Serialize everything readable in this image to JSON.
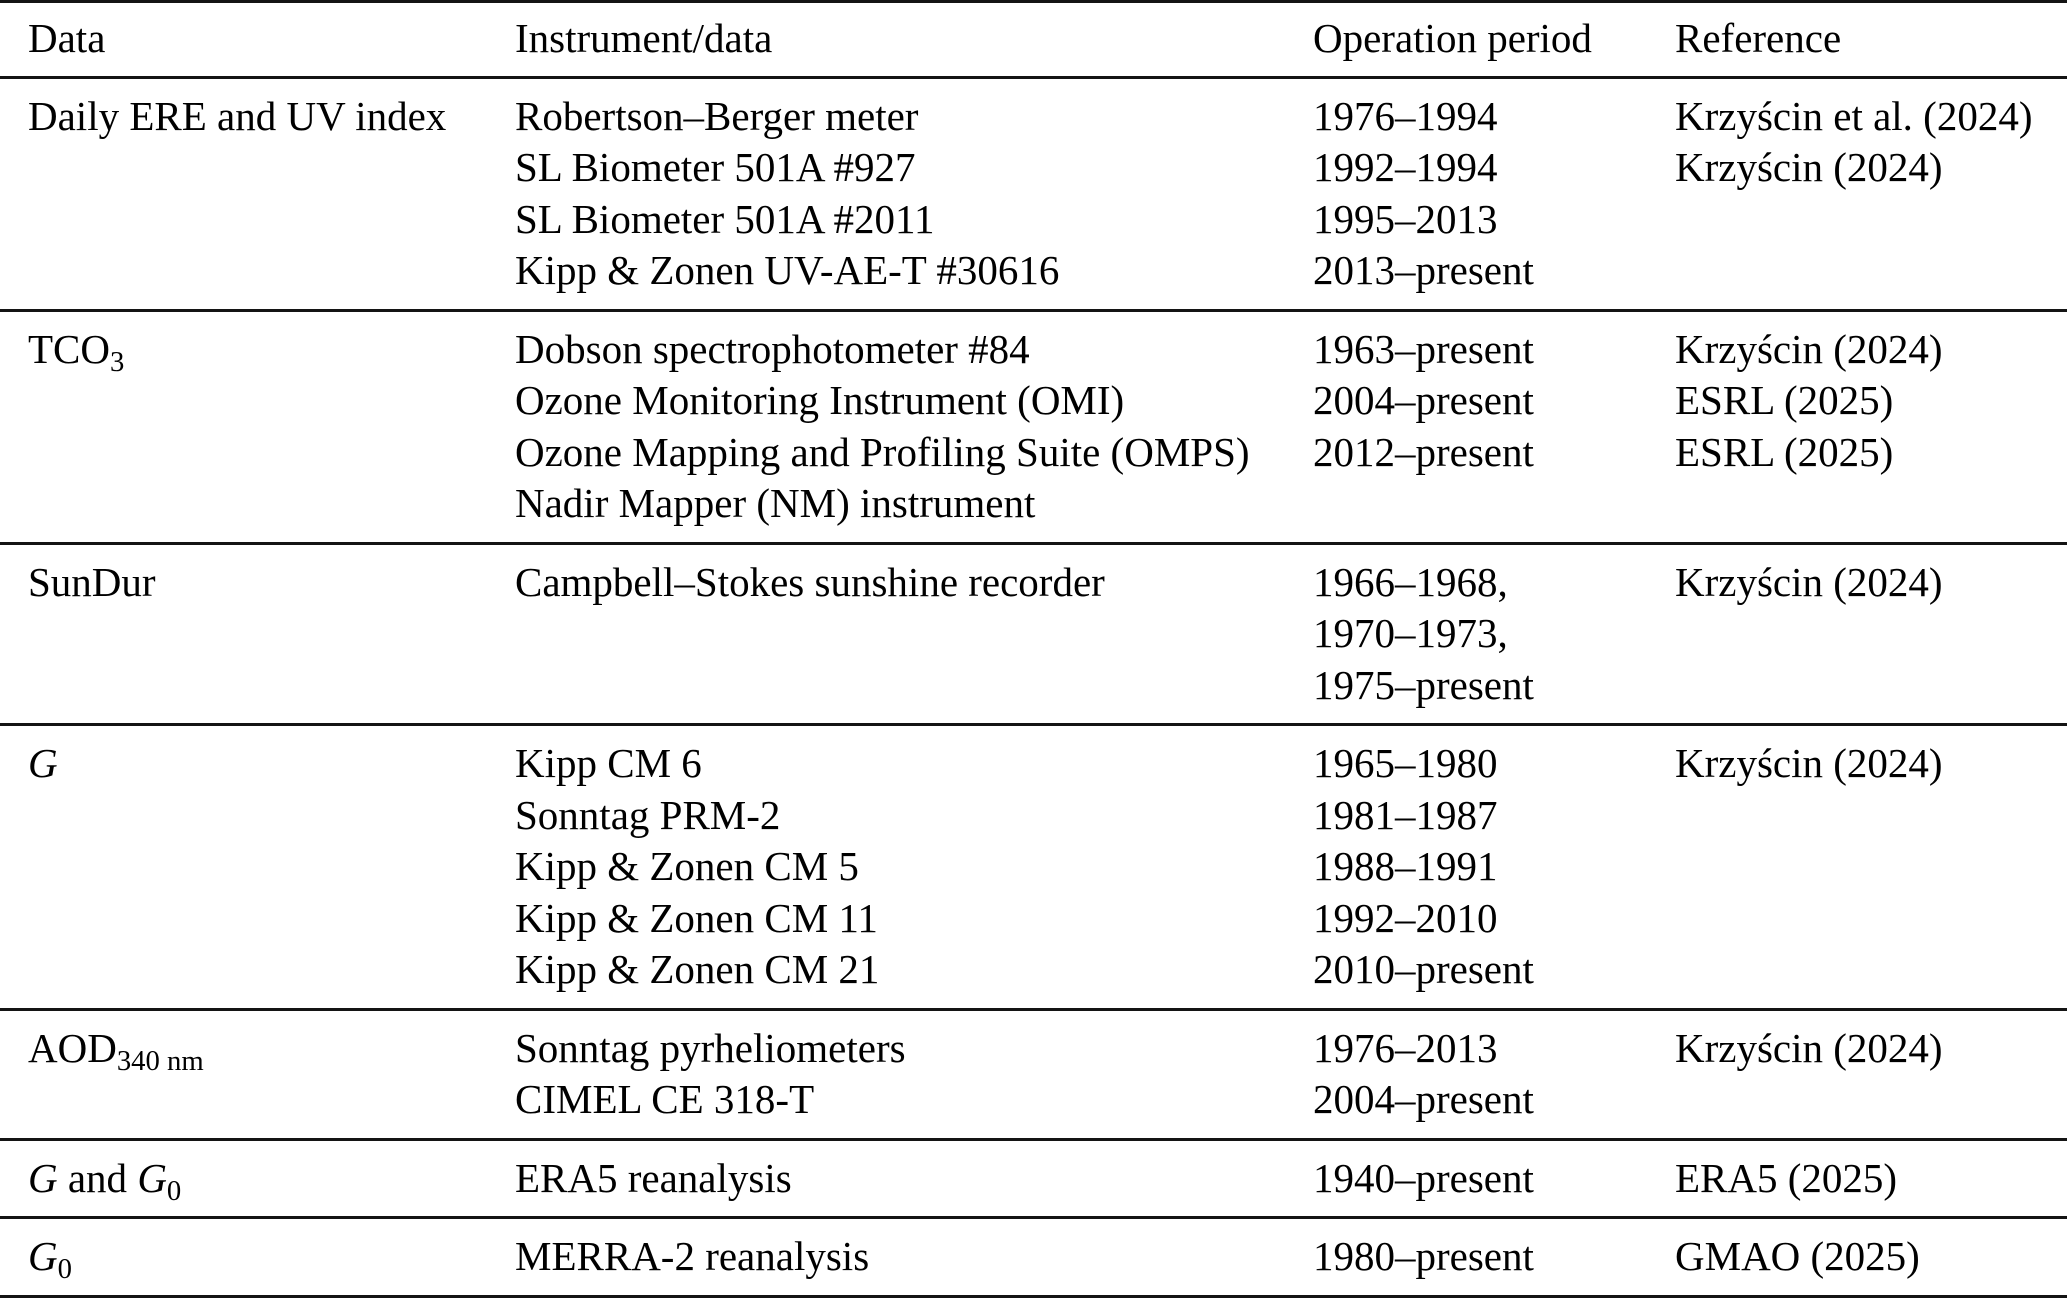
{
  "colors": {
    "text": "#000000",
    "background": "#ffffff",
    "rule": "#141414"
  },
  "table": {
    "columns": [
      "Data",
      "Instrument/data",
      "Operation period",
      "Reference"
    ],
    "rows": [
      {
        "label": [
          {
            "text": "Daily ERE and UV index"
          }
        ],
        "instruments": [
          "Robertson–Berger meter",
          "SL Biometer 501A #927",
          "SL Biometer 501A #2011",
          "Kipp & Zonen UV-AE-T #30616"
        ],
        "periods": [
          "1976–1994",
          "1992–1994",
          "1995–2013",
          "2013–present"
        ],
        "references": [
          "Krzyścin et al. (2024)",
          "Krzyścin (2024)"
        ]
      },
      {
        "label": [
          {
            "text": "TCO"
          },
          {
            "text": "3",
            "sub": true
          }
        ],
        "instruments": [
          "Dobson spectrophotometer #84",
          "Ozone Monitoring Instrument (OMI)",
          "Ozone Mapping and Profiling Suite (OMPS)",
          "Nadir Mapper (NM) instrument"
        ],
        "periods": [
          "1963–present",
          "2004–present",
          "2012–present"
        ],
        "references": [
          "Krzyścin (2024)",
          "ESRL (2025)",
          "ESRL (2025)"
        ]
      },
      {
        "label": [
          {
            "text": "SunDur"
          }
        ],
        "instruments": [
          "Campbell–Stokes sunshine recorder"
        ],
        "periods": [
          "1966–1968,",
          "1970–1973,",
          "1975–present"
        ],
        "references": [
          "Krzyścin (2024)"
        ]
      },
      {
        "label": [
          {
            "text": "G",
            "italic": true
          }
        ],
        "instruments": [
          "Kipp CM 6",
          "Sonntag PRM-2",
          "Kipp & Zonen CM 5",
          "Kipp & Zonen CM 11",
          "Kipp & Zonen CM 21"
        ],
        "periods": [
          "1965–1980",
          "1981–1987",
          "1988–1991",
          "1992–2010",
          "2010–present"
        ],
        "references": [
          "Krzyścin (2024)"
        ]
      },
      {
        "label": [
          {
            "text": "AOD"
          },
          {
            "text": "340 nm",
            "sub": true
          }
        ],
        "instruments": [
          "Sonntag pyrheliometers",
          "CIMEL CE 318-T"
        ],
        "periods": [
          "1976–2013",
          "2004–present"
        ],
        "references": [
          "Krzyścin (2024)"
        ]
      },
      {
        "label": [
          {
            "text": "G",
            "italic": true
          },
          {
            "text": " and "
          },
          {
            "text": "G",
            "italic": true
          },
          {
            "text": "0",
            "sub": true
          }
        ],
        "instruments": [
          "ERA5 reanalysis"
        ],
        "periods": [
          "1940–present"
        ],
        "references": [
          "ERA5 (2025)"
        ]
      },
      {
        "label": [
          {
            "text": "G",
            "italic": true
          },
          {
            "text": "0",
            "sub": true
          }
        ],
        "instruments": [
          "MERRA-2 reanalysis"
        ],
        "periods": [
          "1980–present"
        ],
        "references": [
          "GMAO (2025)"
        ]
      }
    ]
  }
}
